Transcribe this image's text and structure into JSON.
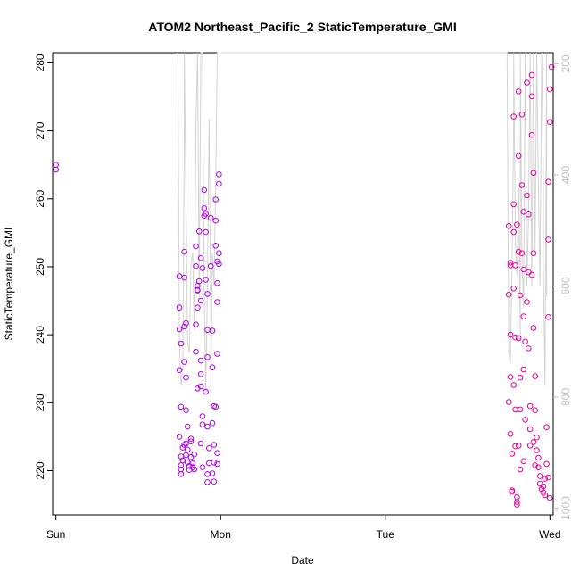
{
  "chart_data": {
    "type": "scatter",
    "title": "ATOM2 Northeast_Pacific_2 StaticTemperature_GMI",
    "xlabel": "Date",
    "ylabel": "StaticTemperature_GMI",
    "x_ticks": [
      "Sun",
      "Mon",
      "Tue",
      "Wed"
    ],
    "xlim": [
      -0.02,
      3.02
    ],
    "ylim": [
      213.5,
      281.5
    ],
    "y_ticks": [
      220,
      230,
      240,
      250,
      260,
      270,
      280
    ],
    "secondary_y": {
      "ticks": [
        200,
        400,
        600,
        800,
        1000
      ],
      "lim": [
        1012,
        180
      ],
      "color": "#c0c0c0",
      "direction": "inverted"
    },
    "grid": false,
    "series": [
      {
        "color": "#b000e8",
        "marker": "open-circle",
        "points": [
          [
            0.0,
            265.0
          ],
          [
            0.0,
            264.3
          ],
          [
            0.75,
            248.6
          ],
          [
            0.75,
            244.0
          ],
          [
            0.75,
            240.8
          ],
          [
            0.76,
            238.7
          ],
          [
            0.75,
            234.8
          ],
          [
            0.76,
            229.4
          ],
          [
            0.75,
            225.0
          ],
          [
            0.77,
            223.4
          ],
          [
            0.76,
            222.1
          ],
          [
            0.77,
            221.5
          ],
          [
            0.76,
            220.8
          ],
          [
            0.76,
            220.2
          ],
          [
            0.76,
            219.5
          ],
          [
            0.78,
            252.2
          ],
          [
            0.78,
            248.4
          ],
          [
            0.78,
            241.2
          ],
          [
            0.79,
            241.7
          ],
          [
            0.78,
            236.0
          ],
          [
            0.79,
            233.7
          ],
          [
            0.79,
            228.9
          ],
          [
            0.8,
            226.5
          ],
          [
            0.79,
            224.0
          ],
          [
            0.78,
            223.8
          ],
          [
            0.8,
            223.1
          ],
          [
            0.79,
            222.3
          ],
          [
            0.8,
            221.2
          ],
          [
            0.81,
            220.7
          ],
          [
            0.81,
            220.1
          ],
          [
            0.82,
            224.7
          ],
          [
            0.82,
            224.3
          ],
          [
            0.82,
            222.0
          ],
          [
            0.83,
            221.1
          ],
          [
            0.83,
            220.5
          ],
          [
            0.84,
            220.2
          ],
          [
            0.84,
            222.4
          ],
          [
            0.85,
            253.0
          ],
          [
            0.85,
            250.1
          ],
          [
            0.86,
            247.2
          ],
          [
            0.86,
            246.6
          ],
          [
            0.86,
            244.0
          ],
          [
            0.85,
            241.5
          ],
          [
            0.85,
            237.5
          ],
          [
            0.86,
            232.1
          ],
          [
            0.86,
            246.5
          ],
          [
            0.87,
            255.2
          ],
          [
            0.87,
            247.9
          ],
          [
            0.88,
            245.0
          ],
          [
            0.88,
            236.2
          ],
          [
            0.88,
            234.2
          ],
          [
            0.88,
            232.4
          ],
          [
            0.89,
            228.0
          ],
          [
            0.89,
            226.8
          ],
          [
            0.88,
            224.0
          ],
          [
            0.89,
            220.5
          ],
          [
            0.88,
            251.3
          ],
          [
            0.89,
            249.8
          ],
          [
            0.9,
            258.6
          ],
          [
            0.9,
            257.5
          ],
          [
            0.91,
            257.8
          ],
          [
            0.9,
            261.3
          ],
          [
            0.91,
            255.1
          ],
          [
            0.91,
            248.1
          ],
          [
            0.92,
            246.0
          ],
          [
            0.92,
            240.7
          ],
          [
            0.92,
            236.7
          ],
          [
            0.91,
            231.6
          ],
          [
            0.92,
            226.5
          ],
          [
            0.93,
            223.3
          ],
          [
            0.93,
            221.1
          ],
          [
            0.92,
            219.5
          ],
          [
            0.92,
            218.3
          ],
          [
            0.94,
            257.2
          ],
          [
            0.94,
            250.1
          ],
          [
            0.95,
            240.6
          ],
          [
            0.95,
            235.2
          ],
          [
            0.96,
            229.5
          ],
          [
            0.95,
            227.0
          ],
          [
            0.96,
            223.8
          ],
          [
            0.96,
            221.2
          ],
          [
            0.95,
            219.6
          ],
          [
            0.96,
            218.4
          ],
          [
            0.97,
            259.9
          ],
          [
            0.97,
            256.8
          ],
          [
            0.97,
            253.1
          ],
          [
            0.98,
            250.8
          ],
          [
            0.98,
            247.6
          ],
          [
            0.98,
            244.8
          ],
          [
            0.98,
            237.2
          ],
          [
            0.97,
            229.4
          ],
          [
            0.98,
            222.6
          ],
          [
            0.98,
            221.0
          ],
          [
            0.99,
            263.6
          ],
          [
            0.99,
            262.2
          ],
          [
            0.99,
            252.0
          ],
          [
            0.99,
            250.4
          ]
        ]
      },
      {
        "color": "#e8009a",
        "marker": "open-circle",
        "points": [
          [
            2.75,
            256.0
          ],
          [
            2.76,
            250.6
          ],
          [
            2.76,
            250.2
          ],
          [
            2.75,
            245.9
          ],
          [
            2.76,
            240.0
          ],
          [
            2.76,
            233.8
          ],
          [
            2.75,
            230.1
          ],
          [
            2.76,
            225.4
          ],
          [
            2.77,
            222.5
          ],
          [
            2.77,
            217.1
          ],
          [
            2.77,
            216.9
          ],
          [
            2.78,
            272.1
          ],
          [
            2.78,
            259.2
          ],
          [
            2.78,
            255.1
          ],
          [
            2.79,
            250.2
          ],
          [
            2.78,
            246.8
          ],
          [
            2.79,
            239.6
          ],
          [
            2.78,
            232.6
          ],
          [
            2.79,
            229.0
          ],
          [
            2.79,
            223.6
          ],
          [
            2.8,
            215.4
          ],
          [
            2.8,
            215.0
          ],
          [
            2.8,
            216.1
          ],
          [
            2.81,
            275.8
          ],
          [
            2.81,
            266.3
          ],
          [
            2.8,
            256.2
          ],
          [
            2.81,
            252.2
          ],
          [
            2.82,
            245.8
          ],
          [
            2.81,
            239.5
          ],
          [
            2.82,
            233.7
          ],
          [
            2.82,
            229.0
          ],
          [
            2.81,
            223.7
          ],
          [
            2.82,
            220.2
          ],
          [
            2.83,
            272.4
          ],
          [
            2.83,
            262.0
          ],
          [
            2.84,
            258.1
          ],
          [
            2.83,
            252.0
          ],
          [
            2.84,
            249.6
          ],
          [
            2.84,
            242.7
          ],
          [
            2.85,
            239.0
          ],
          [
            2.84,
            234.9
          ],
          [
            2.85,
            227.5
          ],
          [
            2.84,
            221.4
          ],
          [
            2.86,
            277.1
          ],
          [
            2.86,
            260.5
          ],
          [
            2.87,
            257.7
          ],
          [
            2.87,
            249.2
          ],
          [
            2.86,
            244.8
          ],
          [
            2.87,
            238.0
          ],
          [
            2.88,
            229.5
          ],
          [
            2.88,
            226.1
          ],
          [
            2.88,
            223.7
          ],
          [
            2.89,
            278.2
          ],
          [
            2.89,
            275.1
          ],
          [
            2.89,
            269.4
          ],
          [
            2.9,
            263.8
          ],
          [
            2.9,
            252.0
          ],
          [
            2.89,
            248.8
          ],
          [
            2.9,
            241.0
          ],
          [
            2.91,
            233.9
          ],
          [
            2.91,
            228.9
          ],
          [
            2.9,
            224.2
          ],
          [
            2.91,
            220.8
          ],
          [
            2.92,
            224.9
          ],
          [
            2.92,
            223.0
          ],
          [
            2.93,
            221.9
          ],
          [
            2.93,
            220.5
          ],
          [
            2.94,
            219.2
          ],
          [
            2.94,
            218.1
          ],
          [
            2.95,
            217.3
          ],
          [
            2.96,
            216.8
          ],
          [
            2.96,
            217.7
          ],
          [
            2.97,
            216.4
          ],
          [
            2.97,
            218.8
          ],
          [
            2.98,
            221.0
          ],
          [
            2.98,
            226.4
          ],
          [
            2.99,
            242.6
          ],
          [
            2.99,
            254.0
          ],
          [
            2.99,
            262.5
          ],
          [
            3.0,
            271.3
          ],
          [
            3.0,
            276.1
          ],
          [
            3.01,
            279.4
          ],
          [
            2.99,
            219.0
          ],
          [
            3.0,
            216.0
          ]
        ]
      },
      {
        "color": "#d3d3d3",
        "marker": "line",
        "axis": "secondary",
        "points": [
          [
            0.74,
            180
          ],
          [
            0.75,
            700
          ],
          [
            0.76,
            780
          ],
          [
            0.77,
            760
          ],
          [
            0.78,
            320
          ],
          [
            0.78,
            180
          ],
          [
            0.8,
            700
          ],
          [
            0.81,
            720
          ],
          [
            0.82,
            560
          ],
          [
            0.83,
            540
          ],
          [
            0.84,
            680
          ],
          [
            0.85,
            320
          ],
          [
            0.86,
            180
          ],
          [
            0.87,
            620
          ],
          [
            0.88,
            180
          ],
          [
            0.89,
            180
          ],
          [
            0.9,
            600
          ],
          [
            0.91,
            790
          ],
          [
            0.92,
            600
          ],
          [
            0.93,
            300
          ],
          [
            0.94,
            640
          ],
          [
            0.94,
            820
          ],
          [
            0.95,
            540
          ],
          [
            0.96,
            600
          ],
          [
            0.97,
            420
          ],
          [
            0.98,
            180
          ],
          [
            0.99,
            180
          ],
          [
            2.74,
            180
          ],
          [
            2.75,
            720
          ],
          [
            2.76,
            740
          ],
          [
            2.77,
            560
          ],
          [
            2.78,
            300
          ],
          [
            2.78,
            180
          ],
          [
            2.79,
            520
          ],
          [
            2.8,
            580
          ],
          [
            2.81,
            420
          ],
          [
            2.82,
            700
          ],
          [
            2.82,
            180
          ],
          [
            2.83,
            540
          ],
          [
            2.84,
            640
          ],
          [
            2.85,
            180
          ],
          [
            2.86,
            600
          ],
          [
            2.87,
            480
          ],
          [
            2.88,
            180
          ],
          [
            2.89,
            600
          ],
          [
            2.9,
            180
          ],
          [
            2.91,
            540
          ],
          [
            2.92,
            180
          ],
          [
            2.93,
            420
          ],
          [
            2.94,
            600
          ],
          [
            2.95,
            180
          ],
          [
            2.96,
            400
          ],
          [
            2.96,
            560
          ],
          [
            2.97,
            780
          ],
          [
            2.98,
            180
          ],
          [
            2.98,
            620
          ]
        ]
      }
    ]
  }
}
